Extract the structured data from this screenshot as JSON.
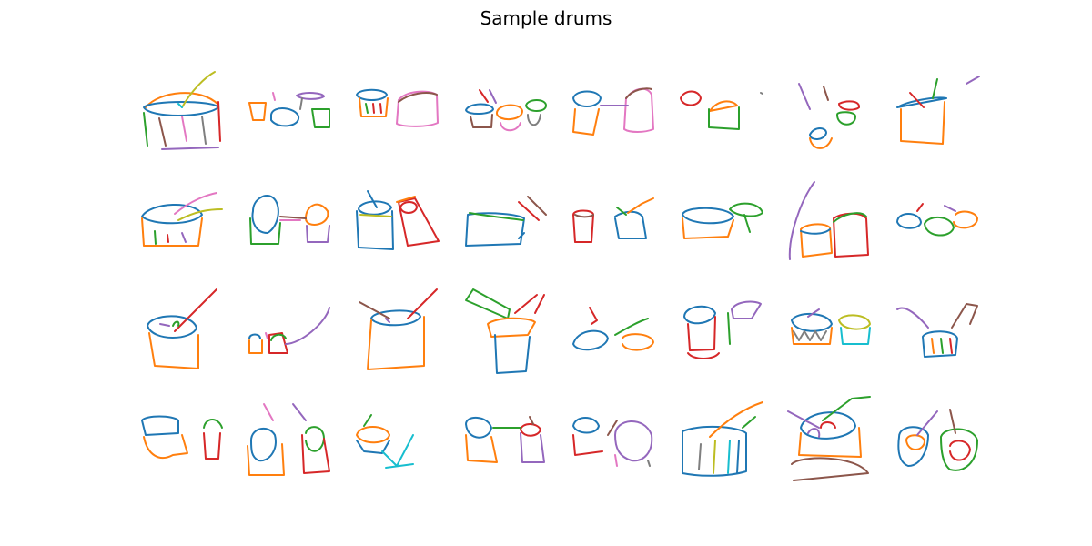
{
  "title": "Sample drums",
  "colors": {
    "blue": "#1f77b4",
    "orange": "#ff7f0e",
    "green": "#2ca02c",
    "red": "#d62728",
    "purple": "#9467bd",
    "brown": "#8c564b",
    "pink": "#e377c2",
    "gray": "#7f7f7f",
    "olive": "#bcbd22",
    "cyan": "#17becf"
  },
  "grid": {
    "rows": 4,
    "cols": 8
  }
}
